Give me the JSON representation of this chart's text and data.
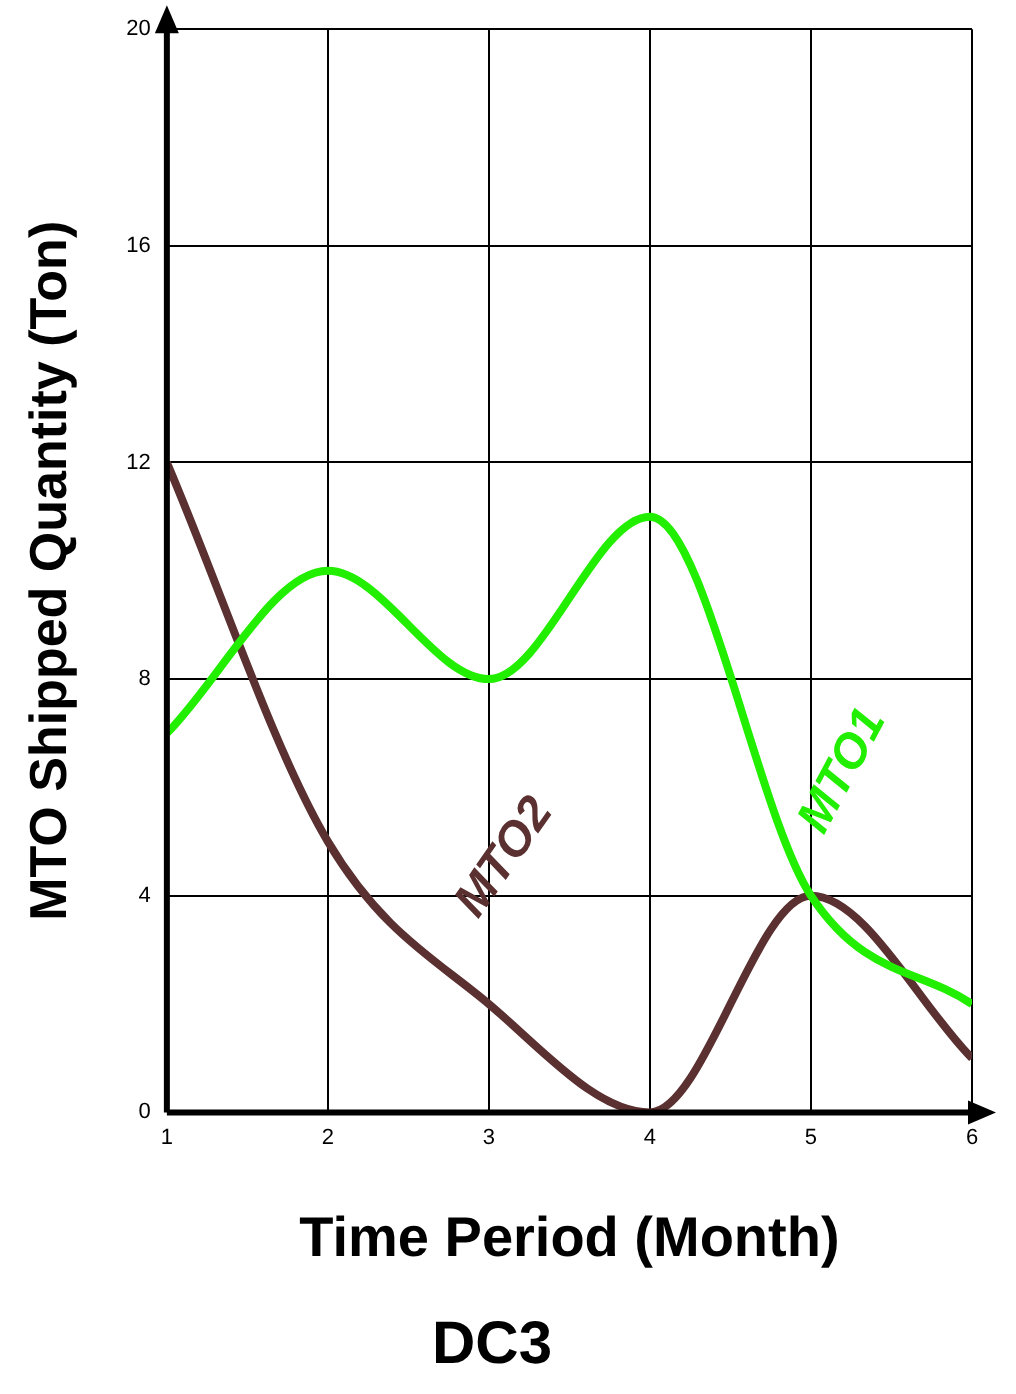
{
  "chart_data": {
    "type": "line",
    "title": "DC3",
    "xlabel": "Time Period (Month)",
    "ylabel": "MTO Shipped Quantity (Ton)",
    "x": [
      1,
      2,
      3,
      4,
      5,
      6
    ],
    "xlim": [
      1,
      6
    ],
    "xticks": [
      1,
      2,
      3,
      4,
      5,
      6
    ],
    "ylim": [
      0,
      20
    ],
    "yticks": [
      0,
      4,
      8,
      12,
      16,
      20
    ],
    "grid": true,
    "legend": false,
    "marker": "none",
    "line_style": "solid",
    "series": [
      {
        "name": "MTO1",
        "color": "#22ee00",
        "values": [
          7,
          10,
          8,
          11,
          4,
          2
        ]
      },
      {
        "name": "MTO2",
        "color": "#5a3030",
        "values": [
          12,
          5,
          2,
          0,
          4,
          1
        ]
      }
    ]
  }
}
